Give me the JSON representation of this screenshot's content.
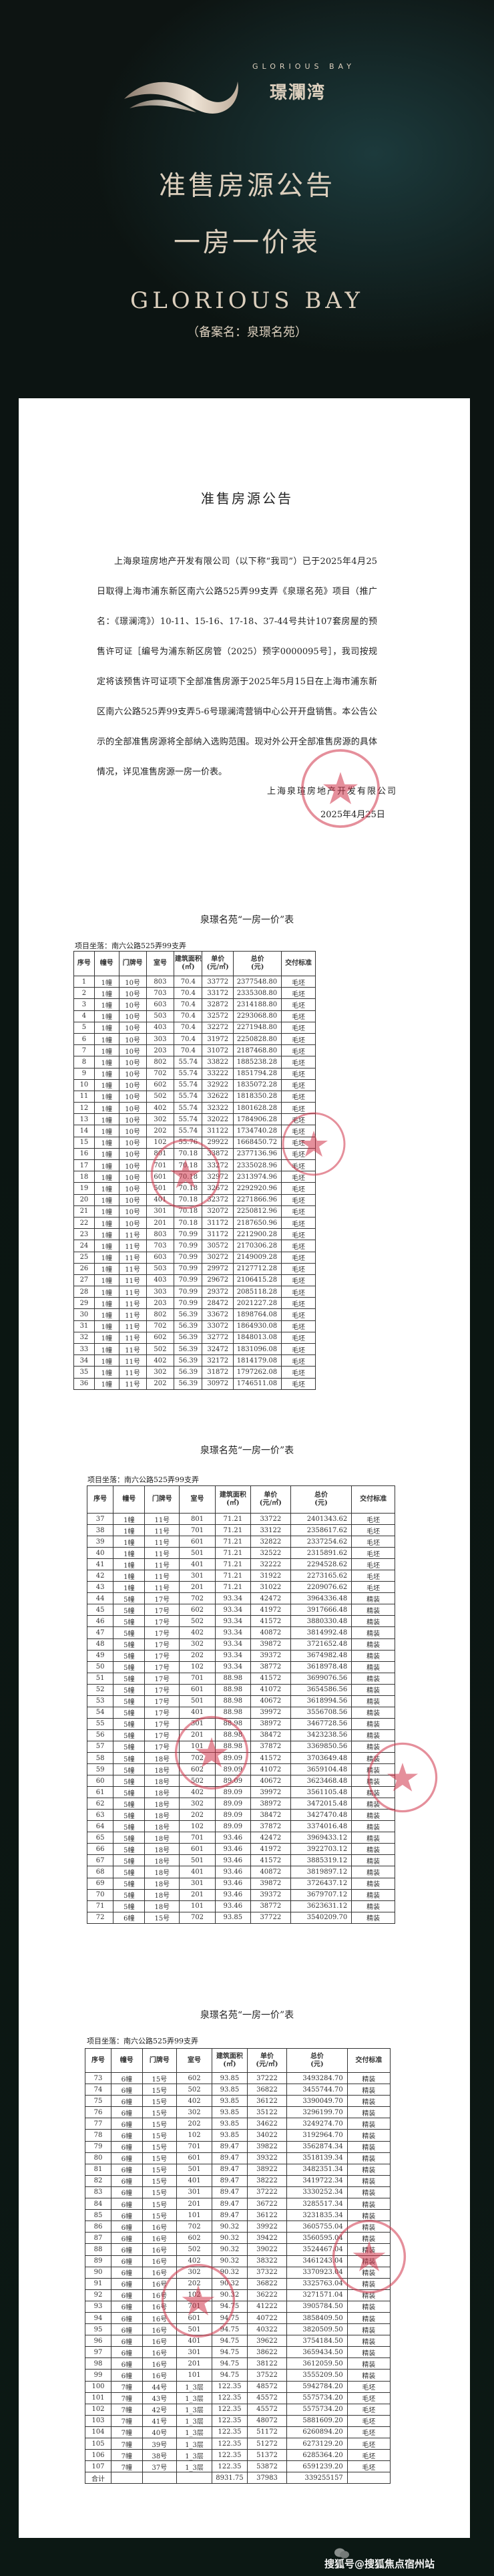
{
  "brand": {
    "logo_en": "GLORIOUS BAY",
    "logo_cn": "璟瀾湾"
  },
  "hero": {
    "title": "准售房源公告",
    "subtitle": "一房一价表",
    "english_name": "GLORIOUS BAY",
    "filing_name": "（备案名：泉璟名苑）"
  },
  "announcement": {
    "title": "准售房源公告",
    "body": "上海泉瑄房地产开发有限公司（以下称“我司”）已于2025年4月25日取得上海市浦东新区南六公路525弄99支弄《泉璟名苑》项目（推广名：《璟澜湾》）10-11、15-16、17-18、37-44号共计107套房屋的预售许可证［编号为浦东新区房管（2025）预字0000095号］，我司按规定将该预售许可证项下全部准售房源于2025年5月15日在上海市浦东新区南六公路525弄99支弄5-6号璟澜湾营销中心公开开盘销售。本公告公示的全部准售房源将全部纳入选购范围。现对外公开全部准售房源的具体情况，详见准售房源一房一价表。",
    "signature_company": "上海泉瑄房地产开发有限公司",
    "signature_date": "2025年4月25日",
    "seal_text": "上海泉瑄房地产开发有限公司"
  },
  "table_common": {
    "title": "泉璟名苑“一房一价”表",
    "location": "项目坐落：南六公路525弄99支弄",
    "headers": [
      "序号",
      "幢号",
      "门牌号",
      "室号",
      "建筑面积\n(㎡)",
      "单价\n(元/㎡)",
      "总价\n(元)",
      "交付标准"
    ]
  },
  "tables": [
    {
      "rows": [
        [
          "1",
          "1幢",
          "10号",
          "803",
          "70.4",
          "33772",
          "2377548.80",
          "毛坯"
        ],
        [
          "2",
          "1幢",
          "10号",
          "703",
          "70.4",
          "33172",
          "2335308.80",
          "毛坯"
        ],
        [
          "3",
          "1幢",
          "10号",
          "603",
          "70.4",
          "32872",
          "2314188.80",
          "毛坯"
        ],
        [
          "4",
          "1幢",
          "10号",
          "503",
          "70.4",
          "32572",
          "2293068.80",
          "毛坯"
        ],
        [
          "5",
          "1幢",
          "10号",
          "403",
          "70.4",
          "32272",
          "2271948.80",
          "毛坯"
        ],
        [
          "6",
          "1幢",
          "10号",
          "303",
          "70.4",
          "31972",
          "2250828.80",
          "毛坯"
        ],
        [
          "7",
          "1幢",
          "10号",
          "203",
          "70.4",
          "31072",
          "2187468.80",
          "毛坯"
        ],
        [
          "8",
          "1幢",
          "10号",
          "802",
          "55.74",
          "33822",
          "1885238.28",
          "毛坯"
        ],
        [
          "9",
          "1幢",
          "10号",
          "702",
          "55.74",
          "33222",
          "1851794.28",
          "毛坯"
        ],
        [
          "10",
          "1幢",
          "10号",
          "602",
          "55.74",
          "32922",
          "1835072.28",
          "毛坯"
        ],
        [
          "11",
          "1幢",
          "10号",
          "502",
          "55.74",
          "32622",
          "1818350.28",
          "毛坯"
        ],
        [
          "12",
          "1幢",
          "10号",
          "402",
          "55.74",
          "32322",
          "1801628.28",
          "毛坯"
        ],
        [
          "13",
          "1幢",
          "10号",
          "302",
          "55.74",
          "32022",
          "1784906.28",
          "毛坯"
        ],
        [
          "14",
          "1幢",
          "10号",
          "202",
          "55.74",
          "31122",
          "1734740.28",
          "毛坯"
        ],
        [
          "15",
          "1幢",
          "10号",
          "102",
          "55.76",
          "29922",
          "1668450.72",
          "毛坯"
        ],
        [
          "16",
          "1幢",
          "10号",
          "801",
          "70.18",
          "33872",
          "2377136.96",
          "毛坯"
        ],
        [
          "17",
          "1幢",
          "10号",
          "701",
          "70.18",
          "33272",
          "2335028.96",
          "毛坯"
        ],
        [
          "18",
          "1幢",
          "10号",
          "601",
          "70.18",
          "32972",
          "2313974.96",
          "毛坯"
        ],
        [
          "19",
          "1幢",
          "10号",
          "501",
          "70.18",
          "32672",
          "2292920.96",
          "毛坯"
        ],
        [
          "20",
          "1幢",
          "10号",
          "401",
          "70.18",
          "32372",
          "2271866.96",
          "毛坯"
        ],
        [
          "21",
          "1幢",
          "10号",
          "301",
          "70.18",
          "32072",
          "2250812.96",
          "毛坯"
        ],
        [
          "22",
          "1幢",
          "10号",
          "201",
          "70.18",
          "31172",
          "2187650.96",
          "毛坯"
        ],
        [
          "23",
          "1幢",
          "11号",
          "803",
          "70.99",
          "31172",
          "2212900.28",
          "毛坯"
        ],
        [
          "24",
          "1幢",
          "11号",
          "703",
          "70.99",
          "30572",
          "2170306.28",
          "毛坯"
        ],
        [
          "25",
          "1幢",
          "11号",
          "603",
          "70.99",
          "30272",
          "2149009.28",
          "毛坯"
        ],
        [
          "26",
          "1幢",
          "11号",
          "503",
          "70.99",
          "29972",
          "2127712.28",
          "毛坯"
        ],
        [
          "27",
          "1幢",
          "11号",
          "403",
          "70.99",
          "29672",
          "2106415.28",
          "毛坯"
        ],
        [
          "28",
          "1幢",
          "11号",
          "303",
          "70.99",
          "29372",
          "2085118.28",
          "毛坯"
        ],
        [
          "29",
          "1幢",
          "11号",
          "203",
          "70.99",
          "28472",
          "2021227.28",
          "毛坯"
        ],
        [
          "30",
          "1幢",
          "11号",
          "802",
          "56.39",
          "33672",
          "1898764.08",
          "毛坯"
        ],
        [
          "31",
          "1幢",
          "11号",
          "702",
          "56.39",
          "33072",
          "1864930.08",
          "毛坯"
        ],
        [
          "32",
          "1幢",
          "11号",
          "602",
          "56.39",
          "32772",
          "1848013.08",
          "毛坯"
        ],
        [
          "33",
          "1幢",
          "11号",
          "502",
          "56.39",
          "32472",
          "1831096.08",
          "毛坯"
        ],
        [
          "34",
          "1幢",
          "11号",
          "402",
          "56.39",
          "32172",
          "1814179.08",
          "毛坯"
        ],
        [
          "35",
          "1幢",
          "11号",
          "302",
          "56.39",
          "31872",
          "1797262.08",
          "毛坯"
        ],
        [
          "36",
          "1幢",
          "11号",
          "202",
          "56.39",
          "30972",
          "1746511.08",
          "毛坯"
        ]
      ]
    },
    {
      "rows": [
        [
          "37",
          "1幢",
          "11号",
          "801",
          "71.21",
          "33722",
          "2401343.62",
          "毛坯"
        ],
        [
          "38",
          "1幢",
          "11号",
          "701",
          "71.21",
          "33122",
          "2358617.62",
          "毛坯"
        ],
        [
          "39",
          "1幢",
          "11号",
          "601",
          "71.21",
          "32822",
          "2337254.62",
          "毛坯"
        ],
        [
          "40",
          "1幢",
          "11号",
          "501",
          "71.21",
          "32522",
          "2315891.62",
          "毛坯"
        ],
        [
          "41",
          "1幢",
          "11号",
          "401",
          "71.21",
          "32222",
          "2294528.62",
          "毛坯"
        ],
        [
          "42",
          "1幢",
          "11号",
          "301",
          "71.21",
          "31922",
          "2273165.62",
          "毛坯"
        ],
        [
          "43",
          "1幢",
          "11号",
          "201",
          "71.21",
          "31022",
          "2209076.62",
          "毛坯"
        ],
        [
          "44",
          "5幢",
          "17号",
          "702",
          "93.34",
          "42472",
          "3964336.48",
          "精装"
        ],
        [
          "45",
          "5幢",
          "17号",
          "602",
          "93.34",
          "41972",
          "3917666.48",
          "精装"
        ],
        [
          "46",
          "5幢",
          "17号",
          "502",
          "93.34",
          "41572",
          "3880330.48",
          "精装"
        ],
        [
          "47",
          "5幢",
          "17号",
          "402",
          "93.34",
          "40872",
          "3814992.48",
          "精装"
        ],
        [
          "48",
          "5幢",
          "17号",
          "302",
          "93.34",
          "39872",
          "3721652.48",
          "精装"
        ],
        [
          "49",
          "5幢",
          "17号",
          "202",
          "93.34",
          "39372",
          "3674982.48",
          "精装"
        ],
        [
          "50",
          "5幢",
          "17号",
          "102",
          "93.34",
          "38772",
          "3618978.48",
          "精装"
        ],
        [
          "51",
          "5幢",
          "17号",
          "701",
          "88.98",
          "41572",
          "3699076.56",
          "精装"
        ],
        [
          "52",
          "5幢",
          "17号",
          "601",
          "88.98",
          "41072",
          "3654586.56",
          "精装"
        ],
        [
          "53",
          "5幢",
          "17号",
          "501",
          "88.98",
          "40672",
          "3618994.56",
          "精装"
        ],
        [
          "54",
          "5幢",
          "17号",
          "401",
          "88.98",
          "39972",
          "3556708.56",
          "精装"
        ],
        [
          "55",
          "5幢",
          "17号",
          "301",
          "88.98",
          "38972",
          "3467728.56",
          "精装"
        ],
        [
          "56",
          "5幢",
          "17号",
          "201",
          "88.98",
          "38472",
          "3423238.56",
          "精装"
        ],
        [
          "57",
          "5幢",
          "17号",
          "101",
          "88.98",
          "37872",
          "3369850.56",
          "精装"
        ],
        [
          "58",
          "5幢",
          "18号",
          "702",
          "89.09",
          "41572",
          "3703649.48",
          "精装"
        ],
        [
          "59",
          "5幢",
          "18号",
          "602",
          "89.09",
          "41072",
          "3659104.48",
          "精装"
        ],
        [
          "60",
          "5幢",
          "18号",
          "502",
          "89.09",
          "40672",
          "3623468.48",
          "精装"
        ],
        [
          "61",
          "5幢",
          "18号",
          "402",
          "89.09",
          "39972",
          "3561105.48",
          "精装"
        ],
        [
          "62",
          "5幢",
          "18号",
          "302",
          "89.09",
          "38972",
          "3472015.48",
          "精装"
        ],
        [
          "63",
          "5幢",
          "18号",
          "202",
          "89.09",
          "38472",
          "3427470.48",
          "精装"
        ],
        [
          "64",
          "5幢",
          "18号",
          "102",
          "89.09",
          "37872",
          "3374016.48",
          "精装"
        ],
        [
          "65",
          "5幢",
          "18号",
          "701",
          "93.46",
          "42472",
          "3969433.12",
          "精装"
        ],
        [
          "66",
          "5幢",
          "18号",
          "601",
          "93.46",
          "41972",
          "3922703.12",
          "精装"
        ],
        [
          "67",
          "5幢",
          "18号",
          "501",
          "93.46",
          "41572",
          "3885319.12",
          "精装"
        ],
        [
          "68",
          "5幢",
          "18号",
          "401",
          "93.46",
          "40872",
          "3819897.12",
          "精装"
        ],
        [
          "69",
          "5幢",
          "18号",
          "301",
          "93.46",
          "39872",
          "3726437.12",
          "精装"
        ],
        [
          "70",
          "5幢",
          "18号",
          "201",
          "93.46",
          "39372",
          "3679707.12",
          "精装"
        ],
        [
          "71",
          "5幢",
          "18号",
          "101",
          "93.46",
          "38772",
          "3623631.12",
          "精装"
        ],
        [
          "72",
          "6幢",
          "15号",
          "702",
          "93.85",
          "37722",
          "3540209.70",
          "精装"
        ]
      ]
    },
    {
      "rows": [
        [
          "73",
          "6幢",
          "15号",
          "602",
          "93.85",
          "37222",
          "3493284.70",
          "精装"
        ],
        [
          "74",
          "6幢",
          "15号",
          "502",
          "93.85",
          "36822",
          "3455744.70",
          "精装"
        ],
        [
          "75",
          "6幢",
          "15号",
          "402",
          "93.85",
          "36122",
          "3390049.70",
          "精装"
        ],
        [
          "76",
          "6幢",
          "15号",
          "302",
          "93.85",
          "35122",
          "3296199.70",
          "精装"
        ],
        [
          "77",
          "6幢",
          "15号",
          "202",
          "93.85",
          "34622",
          "3249274.70",
          "精装"
        ],
        [
          "78",
          "6幢",
          "15号",
          "102",
          "93.85",
          "34022",
          "3192964.70",
          "精装"
        ],
        [
          "79",
          "6幢",
          "15号",
          "701",
          "89.47",
          "39822",
          "3562874.34",
          "精装"
        ],
        [
          "80",
          "6幢",
          "15号",
          "601",
          "89.47",
          "39322",
          "3518139.34",
          "精装"
        ],
        [
          "81",
          "6幢",
          "15号",
          "501",
          "89.47",
          "38922",
          "3482351.34",
          "精装"
        ],
        [
          "82",
          "6幢",
          "15号",
          "401",
          "89.47",
          "38222",
          "3419722.34",
          "精装"
        ],
        [
          "83",
          "6幢",
          "15号",
          "301",
          "89.47",
          "37222",
          "3330252.34",
          "精装"
        ],
        [
          "84",
          "6幢",
          "15号",
          "201",
          "89.47",
          "36722",
          "3285517.34",
          "精装"
        ],
        [
          "85",
          "6幢",
          "15号",
          "101",
          "89.47",
          "36122",
          "3231835.34",
          "精装"
        ],
        [
          "86",
          "6幢",
          "16号",
          "702",
          "90.32",
          "39922",
          "3605755.04",
          "精装"
        ],
        [
          "87",
          "6幢",
          "16号",
          "602",
          "90.32",
          "39422",
          "3560595.04",
          "精装"
        ],
        [
          "88",
          "6幢",
          "16号",
          "502",
          "90.32",
          "39022",
          "3524467.04",
          "精装"
        ],
        [
          "89",
          "6幢",
          "16号",
          "402",
          "90.32",
          "38322",
          "3461243.04",
          "精装"
        ],
        [
          "90",
          "6幢",
          "16号",
          "302",
          "90.32",
          "37322",
          "3370923.04",
          "精装"
        ],
        [
          "91",
          "6幢",
          "16号",
          "202",
          "90.32",
          "36822",
          "3325763.04",
          "精装"
        ],
        [
          "92",
          "6幢",
          "16号",
          "102",
          "90.32",
          "36222",
          "3271571.04",
          "精装"
        ],
        [
          "93",
          "6幢",
          "16号",
          "701",
          "94.75",
          "41222",
          "3905784.50",
          "精装"
        ],
        [
          "94",
          "6幢",
          "16号",
          "601",
          "94.75",
          "40722",
          "3858409.50",
          "精装"
        ],
        [
          "95",
          "6幢",
          "16号",
          "501",
          "94.75",
          "40322",
          "3820509.50",
          "精装"
        ],
        [
          "96",
          "6幢",
          "16号",
          "401",
          "94.75",
          "39622",
          "3754184.50",
          "精装"
        ],
        [
          "97",
          "6幢",
          "16号",
          "301",
          "94.75",
          "38622",
          "3659434.50",
          "精装"
        ],
        [
          "98",
          "6幢",
          "16号",
          "201",
          "94.75",
          "38122",
          "3612059.50",
          "精装"
        ],
        [
          "99",
          "6幢",
          "16号",
          "101",
          "94.75",
          "37522",
          "3555209.50",
          "精装"
        ],
        [
          "100",
          "7幢",
          "44号",
          "1_3层",
          "122.35",
          "48572",
          "5942784.20",
          "毛坯"
        ],
        [
          "101",
          "7幢",
          "43号",
          "1_3层",
          "122.35",
          "45572",
          "5575734.20",
          "毛坯"
        ],
        [
          "102",
          "7幢",
          "42号",
          "1_3层",
          "122.35",
          "45572",
          "5575734.20",
          "毛坯"
        ],
        [
          "103",
          "7幢",
          "41号",
          "1_3层",
          "122.35",
          "48072",
          "5881609.20",
          "毛坯"
        ],
        [
          "104",
          "7幢",
          "40号",
          "1_3层",
          "122.35",
          "51172",
          "6260894.20",
          "毛坯"
        ],
        [
          "105",
          "7幢",
          "39号",
          "1_3层",
          "122.35",
          "51272",
          "6273129.20",
          "毛坯"
        ],
        [
          "106",
          "7幢",
          "38号",
          "1_3层",
          "122.35",
          "51372",
          "6285364.20",
          "毛坯"
        ],
        [
          "107",
          "7幢",
          "37号",
          "1_3层",
          "122.35",
          "53872",
          "6591239.20",
          "毛坯"
        ]
      ],
      "total_row": [
        "合计",
        "",
        "",
        "",
        "8931.75",
        "37983",
        "339255157",
        ""
      ]
    }
  ],
  "watermark": {
    "text": "搜狐号@搜狐焦点宿州站",
    "icon": "wechat-icon"
  },
  "colors": {
    "background": "#0c1613",
    "gold": "#dccfbd",
    "seal_red": "#d0344a"
  }
}
